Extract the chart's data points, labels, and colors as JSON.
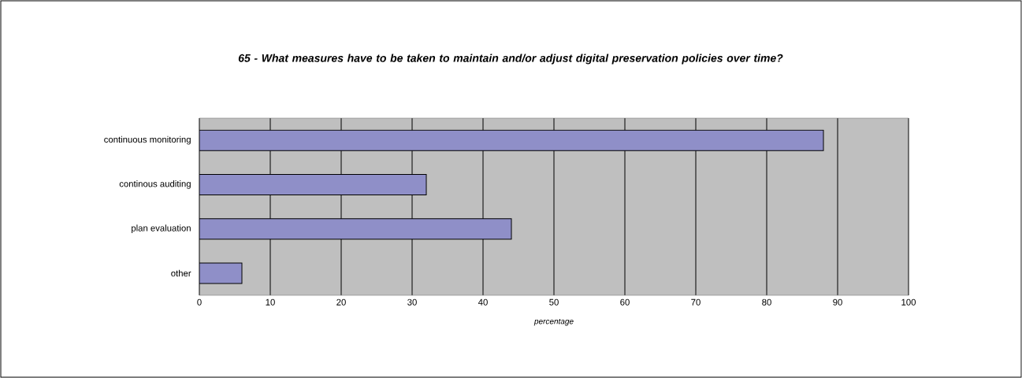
{
  "chart_data": {
    "type": "bar",
    "orientation": "horizontal",
    "title": "65 - What measures have to be taken to maintain and/or adjust digital preservation policies over time?",
    "xlabel": "percentage",
    "categories": [
      "continuous monitoring",
      "continous auditing",
      "plan evaluation",
      "other"
    ],
    "values": [
      88,
      32,
      44,
      6
    ],
    "color": "#8f8fc8",
    "xlim": [
      0,
      100
    ],
    "xticks": [
      0,
      10,
      20,
      30,
      40,
      50,
      60,
      70,
      80,
      90,
      100
    ],
    "grid": "x"
  }
}
